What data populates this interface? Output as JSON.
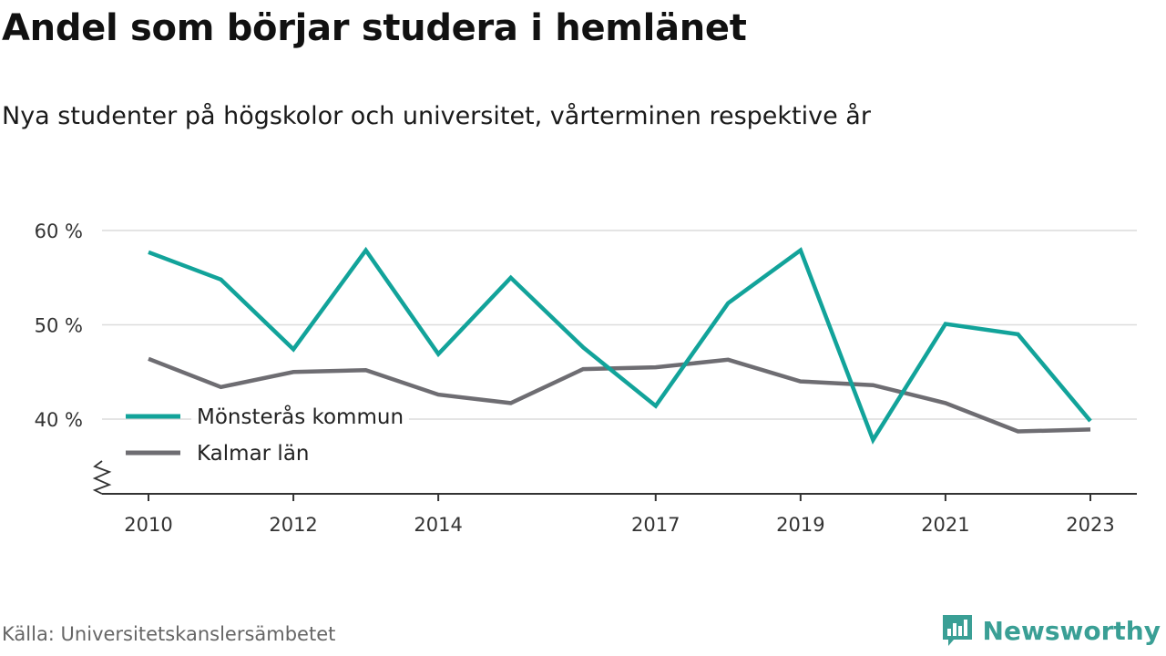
{
  "header": {
    "title": "Andel som börjar studera i hemlänet",
    "subtitle": "Nya studenter på högskolor och universitet, vårterminen respektive år"
  },
  "footer": {
    "source": "Källa: Universitetskanslersämbetet",
    "brand": "Newsworthy",
    "brand_icon": "bar-chart-speech-bubble-icon"
  },
  "colors": {
    "series_1": "#12a39a",
    "series_2": "#6e6d72",
    "grid": "#dcdcdc",
    "axis": "#333333",
    "brand": "#3a9f95"
  },
  "chart_data": {
    "type": "line",
    "title": "Andel som börjar studera i hemlänet",
    "subtitle": "Nya studenter på högskolor och universitet, vårterminen respektive år",
    "x": [
      2010,
      2011,
      2012,
      2013,
      2014,
      2015,
      2016,
      2017,
      2018,
      2019,
      2020,
      2021,
      2022,
      2023
    ],
    "x_ticks": [
      2010,
      2012,
      2014,
      2017,
      2019,
      2021,
      2023
    ],
    "x_tick_labels": [
      "2010",
      "2012",
      "2014",
      "2017",
      "2019",
      "2021",
      "2023"
    ],
    "y_ticks": [
      40,
      50,
      60
    ],
    "y_tick_labels": [
      "40 %",
      "50 %",
      "60 %"
    ],
    "ylim": [
      32,
      60
    ],
    "y_axis_break": true,
    "grid": "horizontal",
    "legend": "bottom-left",
    "series": [
      {
        "name": "Mönsterås kommun",
        "color": "#12a39a",
        "values": [
          57.7,
          54.8,
          47.4,
          57.9,
          46.9,
          55.0,
          47.6,
          41.4,
          52.3,
          57.9,
          37.8,
          50.1,
          49.0,
          39.8
        ]
      },
      {
        "name": "Kalmar län",
        "color": "#6e6d72",
        "values": [
          46.4,
          43.4,
          45.0,
          45.2,
          42.6,
          41.7,
          45.3,
          45.5,
          46.3,
          44.0,
          43.6,
          41.7,
          38.7,
          38.9
        ]
      }
    ]
  }
}
